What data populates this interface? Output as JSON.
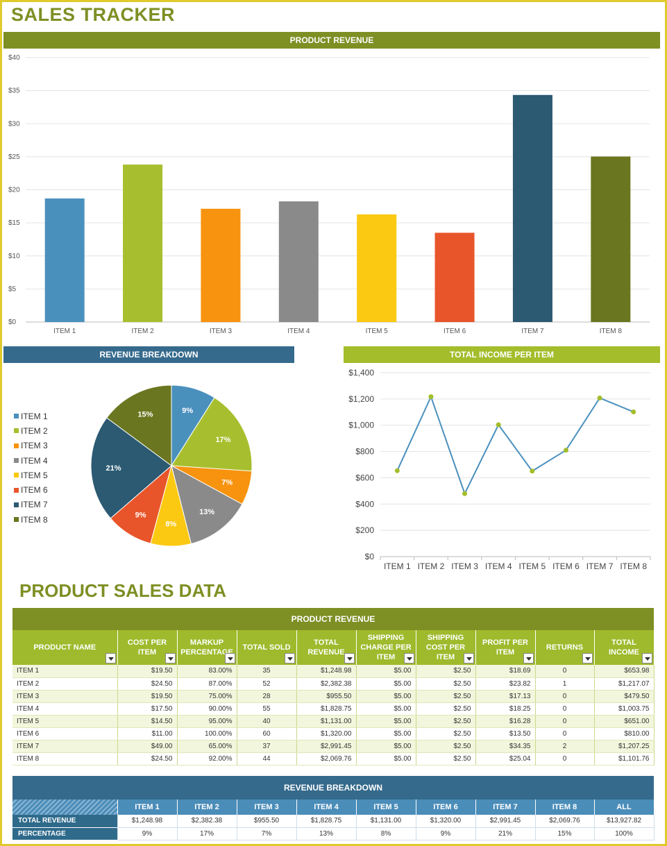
{
  "title": "SALES TRACKER",
  "colors": {
    "olive_band": "#7e8f24",
    "blue_band": "#356a8c",
    "green_band": "#a3bd2b",
    "items": [
      "#4a90bd",
      "#a7bf2e",
      "#f7930e",
      "#8a8a8a",
      "#fbc912",
      "#e8552a",
      "#2b5a72",
      "#6b7620"
    ]
  },
  "chart_data": [
    {
      "type": "bar",
      "title": "PRODUCT REVENUE",
      "categories": [
        "ITEM 1",
        "ITEM 2",
        "ITEM 3",
        "ITEM 4",
        "ITEM 5",
        "ITEM 6",
        "ITEM 7",
        "ITEM 8"
      ],
      "values": [
        18.69,
        23.82,
        17.13,
        18.25,
        16.28,
        13.5,
        34.35,
        25.04
      ],
      "ylim": [
        0,
        40
      ],
      "yticks": [
        "$0",
        "$5",
        "$10",
        "$15",
        "$20",
        "$25",
        "$30",
        "$35",
        "$40"
      ],
      "grid": true
    },
    {
      "type": "pie",
      "title": "REVENUE BREAKDOWN",
      "labels": [
        "ITEM 1",
        "ITEM 2",
        "ITEM 3",
        "ITEM 4",
        "ITEM 5",
        "ITEM 6",
        "ITEM 7",
        "ITEM 8"
      ],
      "values": [
        1248.98,
        2382.38,
        955.5,
        1828.75,
        1131.0,
        1320.0,
        2991.45,
        2069.76
      ],
      "slice_labels": [
        "9%",
        "17%",
        "7%",
        "13%",
        "8%",
        "9%",
        "21%",
        "15%"
      ],
      "legend": "left"
    },
    {
      "type": "line",
      "title": "TOTAL INCOME PER ITEM",
      "categories": [
        "ITEM 1",
        "ITEM 2",
        "ITEM 3",
        "ITEM 4",
        "ITEM 5",
        "ITEM 6",
        "ITEM 7",
        "ITEM 8"
      ],
      "values": [
        653.98,
        1217.07,
        479.5,
        1003.75,
        651.0,
        810.0,
        1207.25,
        1101.76
      ],
      "ylim": [
        0,
        1400
      ],
      "yticks": [
        "$0",
        "$200",
        "$400",
        "$600",
        "$800",
        "$1,000",
        "$1,200",
        "$1,400"
      ],
      "grid": true
    }
  ],
  "sales_section_title": "PRODUCT SALES DATA",
  "sales_table": {
    "banner": "PRODUCT REVENUE",
    "headers": [
      "PRODUCT NAME",
      "COST PER ITEM",
      "MARKUP PERCENTAGE",
      "TOTAL SOLD",
      "TOTAL REVENUE",
      "SHIPPING CHARGE PER ITEM",
      "SHIPPING COST PER ITEM",
      "PROFIT PER ITEM",
      "RETURNS",
      "TOTAL INCOME"
    ],
    "rows": [
      [
        "ITEM 1",
        "$19.50",
        "83.00%",
        "35",
        "$1,248.98",
        "$5.00",
        "$2.50",
        "$18.69",
        "0",
        "$653.98"
      ],
      [
        "ITEM 2",
        "$24.50",
        "87.00%",
        "52",
        "$2,382.38",
        "$5.00",
        "$2.50",
        "$23.82",
        "1",
        "$1,217.07"
      ],
      [
        "ITEM 3",
        "$19.50",
        "75.00%",
        "28",
        "$955.50",
        "$5.00",
        "$2.50",
        "$17.13",
        "0",
        "$479.50"
      ],
      [
        "ITEM 4",
        "$17.50",
        "90.00%",
        "55",
        "$1,828.75",
        "$5.00",
        "$2.50",
        "$18.25",
        "0",
        "$1,003.75"
      ],
      [
        "ITEM 5",
        "$14.50",
        "95.00%",
        "40",
        "$1,131.00",
        "$5.00",
        "$2.50",
        "$16.28",
        "0",
        "$651.00"
      ],
      [
        "ITEM 6",
        "$11.00",
        "100.00%",
        "60",
        "$1,320.00",
        "$5.00",
        "$2.50",
        "$13.50",
        "0",
        "$810.00"
      ],
      [
        "ITEM 7",
        "$49.00",
        "65.00%",
        "37",
        "$2,991.45",
        "$5.00",
        "$2.50",
        "$34.35",
        "2",
        "$1,207.25"
      ],
      [
        "ITEM 8",
        "$24.50",
        "92.00%",
        "44",
        "$2,069.76",
        "$5.00",
        "$2.50",
        "$25.04",
        "0",
        "$1,101.76"
      ]
    ]
  },
  "breakdown_table": {
    "banner": "REVENUE BREAKDOWN",
    "headers": [
      "ITEM 1",
      "ITEM 2",
      "ITEM 3",
      "ITEM 4",
      "ITEM 5",
      "ITEM 6",
      "ITEM 7",
      "ITEM 8",
      "ALL"
    ],
    "rows": [
      {
        "label": "TOTAL REVENUE",
        "cells": [
          "$1,248.98",
          "$2,382.38",
          "$955.50",
          "$1,828.75",
          "$1,131.00",
          "$1,320.00",
          "$2,991.45",
          "$2,069.76",
          "$13,927.82"
        ]
      },
      {
        "label": "PERCENTAGE",
        "cells": [
          "9%",
          "17%",
          "7%",
          "13%",
          "8%",
          "9%",
          "21%",
          "15%",
          "100%"
        ]
      }
    ]
  }
}
